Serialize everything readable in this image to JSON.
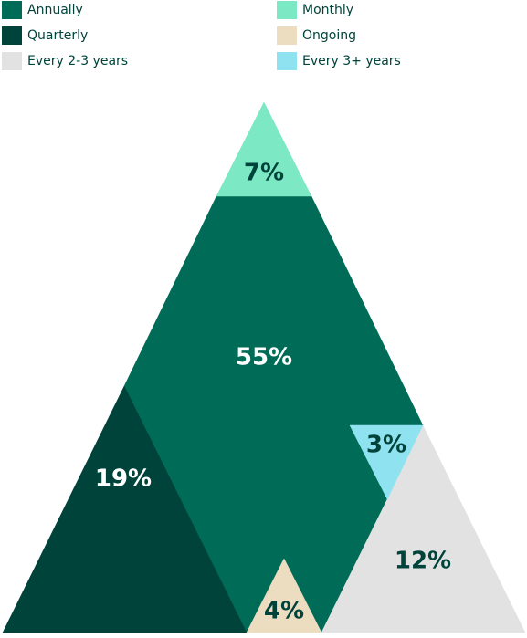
{
  "chart_data": {
    "type": "triangle",
    "categories": [
      "Annually",
      "Quarterly",
      "Every 2-3 years",
      "Monthly",
      "Ongoing",
      "Every 3+ years"
    ],
    "values": [
      55,
      19,
      12,
      7,
      4,
      3
    ],
    "value_labels": [
      "55%",
      "19%",
      "12%",
      "7%",
      "4%",
      "3%"
    ],
    "colors": [
      "#006b56",
      "#00433b",
      "#e2e2e2",
      "#7de8c4",
      "#ecdcc0",
      "#8fe3f0"
    ]
  }
}
